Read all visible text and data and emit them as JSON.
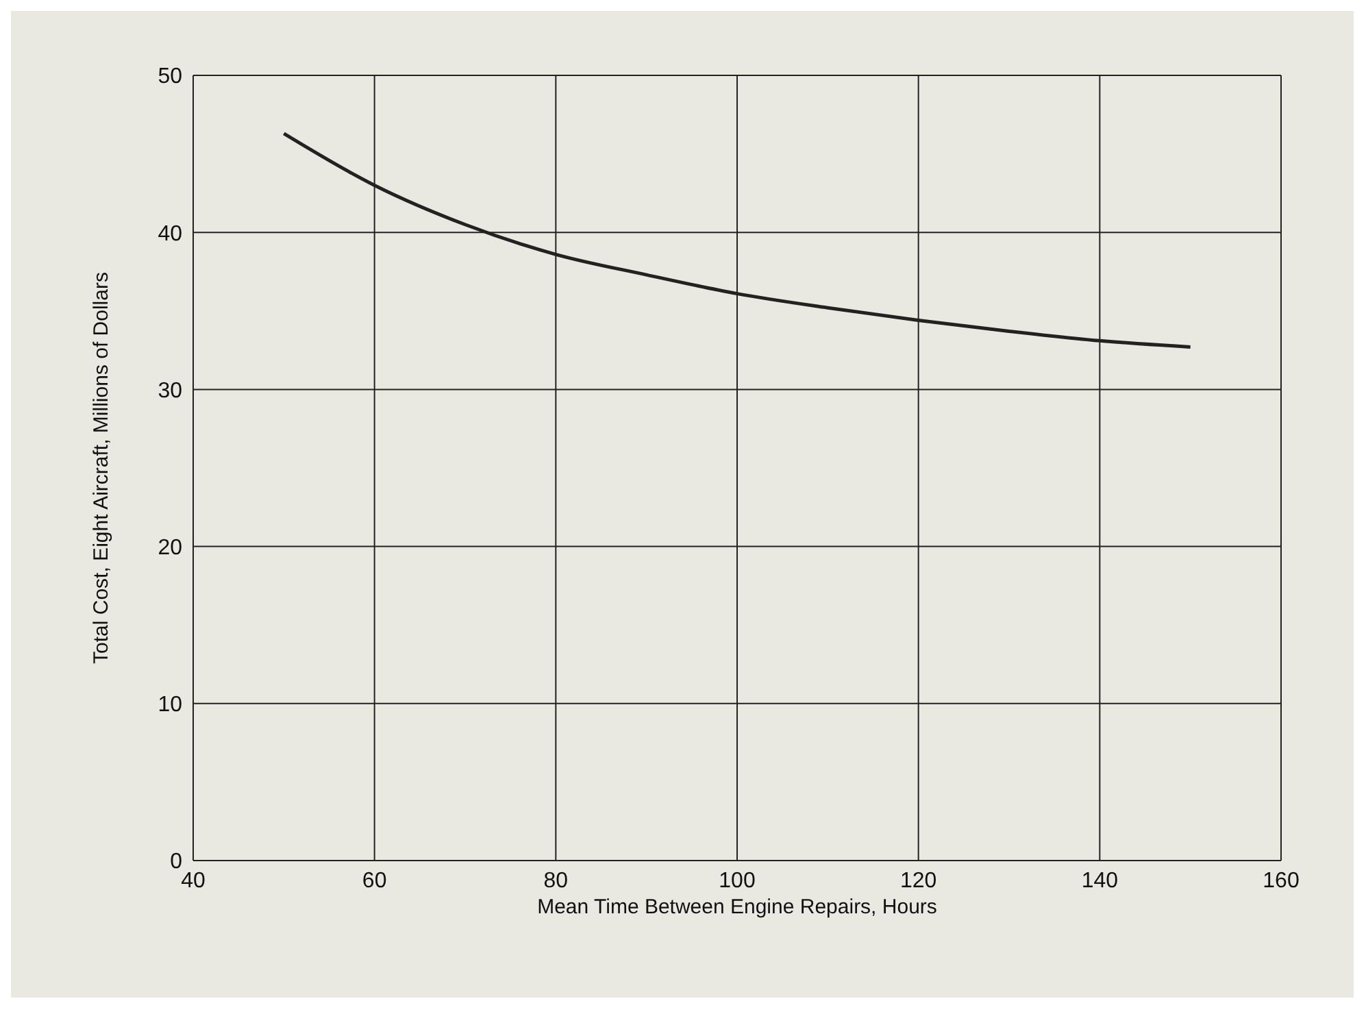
{
  "chart_data": {
    "type": "line",
    "xlabel": "Mean Time Between Engine Repairs, Hours",
    "ylabel": "Total Cost, Eight Aircraft, Millions of Dollars",
    "x": [
      50,
      60,
      70,
      80,
      90,
      100,
      110,
      120,
      130,
      140,
      150
    ],
    "series": [
      {
        "color": "#222222",
        "values": [
          46.3,
          43.0,
          40.5,
          38.6,
          37.3,
          36.1,
          35.2,
          34.4,
          33.7,
          33.1,
          32.7
        ]
      }
    ],
    "xlim": [
      40,
      160
    ],
    "xticks": [
      40,
      60,
      80,
      100,
      120,
      140,
      160
    ],
    "ylim": [
      0,
      50
    ],
    "yticks": [
      0,
      10,
      20,
      30,
      40,
      50
    ],
    "grid": true,
    "marker": "none",
    "line_style": "solid"
  }
}
